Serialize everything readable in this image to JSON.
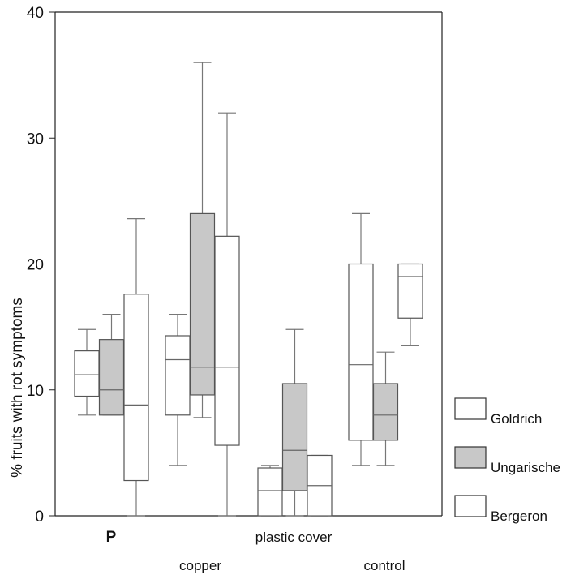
{
  "chart_data": {
    "type": "boxplot",
    "ylabel": "% fruits with rot symptoms",
    "ylim": [
      0,
      40
    ],
    "yticks": [
      0,
      10,
      20,
      30,
      40
    ],
    "categories": [
      "P",
      "copper",
      "plastic cover",
      "control"
    ],
    "legend": {
      "placement": "right-bottom",
      "entries": [
        {
          "name": "Goldrich",
          "color": "#ffffff"
        },
        {
          "name": "Ungarische",
          "color": "#c8c8c8"
        },
        {
          "name": "Bergeron",
          "color": "#ffffff"
        }
      ]
    },
    "series": [
      {
        "name": "Goldrich",
        "color": "#ffffff",
        "boxes": [
          {
            "min": 8,
            "q1": 9.5,
            "median": 11.2,
            "q3": 13.1,
            "max": 14.8
          },
          {
            "min": 4,
            "q1": 8,
            "median": 12.4,
            "q3": 14.3,
            "max": 16
          },
          {
            "min": 0,
            "q1": 0,
            "median": 2,
            "q3": 3.8,
            "max": 4
          },
          {
            "min": 4,
            "q1": 6,
            "median": 12,
            "q3": 20,
            "max": 24
          }
        ]
      },
      {
        "name": "Ungarische",
        "color": "#c8c8c8",
        "boxes": [
          {
            "min": 8,
            "q1": 8,
            "median": 10,
            "q3": 14,
            "max": 16
          },
          {
            "min": 7.8,
            "q1": 9.6,
            "median": 11.8,
            "q3": 24,
            "max": 36
          },
          {
            "min": 0,
            "q1": 2,
            "median": 5.2,
            "q3": 10.5,
            "max": 14.8
          },
          {
            "min": 4,
            "q1": 6,
            "median": 8,
            "q3": 10.5,
            "max": 13
          }
        ]
      },
      {
        "name": "Bergeron",
        "color": "#ffffff",
        "boxes": [
          {
            "min": 0,
            "q1": 2.8,
            "median": 8.8,
            "q3": 17.6,
            "max": 23.6
          },
          {
            "min": 0,
            "q1": 5.6,
            "median": 11.8,
            "q3": 22.2,
            "max": 32
          },
          {
            "min": 0,
            "q1": 0,
            "median": 2.4,
            "q3": 4.8,
            "max": 4.8
          },
          {
            "min": 13.5,
            "q1": 15.7,
            "median": 19,
            "q3": 20,
            "max": 20
          }
        ]
      }
    ]
  }
}
